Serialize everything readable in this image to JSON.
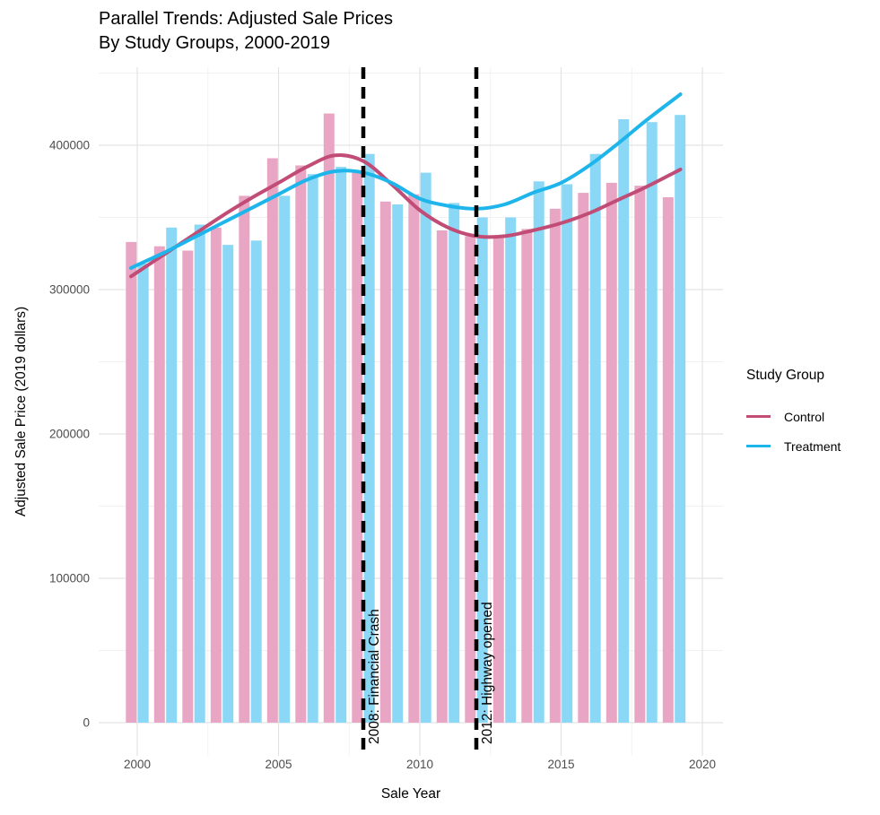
{
  "chart_data": {
    "type": "bar",
    "title_line1": "Parallel Trends: Adjusted Sale Prices",
    "title_line2": "By Study Groups, 2000-2019",
    "xlabel": "Sale Year",
    "ylabel": "Adjusted Sale Price (2019 dollars)",
    "x": [
      2000,
      2001,
      2002,
      2003,
      2004,
      2005,
      2006,
      2007,
      2008,
      2009,
      2010,
      2011,
      2012,
      2013,
      2014,
      2015,
      2016,
      2017,
      2018,
      2019
    ],
    "xticks": [
      2000,
      2005,
      2010,
      2015,
      2020
    ],
    "yticks": [
      0,
      100000,
      200000,
      300000,
      400000
    ],
    "ylim": [
      0,
      450000
    ],
    "grid": true,
    "legend": {
      "title": "Study Group",
      "position": "right",
      "items": [
        {
          "label": "Control",
          "color": "#C14D77"
        },
        {
          "label": "Treatment",
          "color": "#1EB5EB"
        }
      ]
    },
    "series": [
      {
        "name": "Control",
        "glyph": "bar",
        "color": "#E9A6C4",
        "values": [
          333000,
          330000,
          327000,
          343000,
          365000,
          391000,
          386000,
          422000,
          381000,
          361000,
          366000,
          341000,
          337000,
          336000,
          342000,
          356000,
          367000,
          374000,
          372000,
          364000
        ]
      },
      {
        "name": "Treatment",
        "glyph": "bar",
        "color": "#8AD8F5",
        "values": [
          318000,
          343000,
          345000,
          331000,
          334000,
          365000,
          380000,
          385000,
          394000,
          359000,
          381000,
          360000,
          350000,
          350000,
          375000,
          373000,
          394000,
          418000,
          416000,
          421000
        ]
      },
      {
        "name": "Control trend",
        "glyph": "line",
        "color": "#C14D77",
        "values": [
          312000,
          325000,
          338000,
          351000,
          363000,
          374000,
          385000,
          393000,
          389000,
          373000,
          355000,
          343000,
          337000,
          337000,
          341000,
          346000,
          353000,
          362000,
          371000,
          381000
        ]
      },
      {
        "name": "Treatment trend",
        "glyph": "line",
        "color": "#1EB5EB",
        "values": [
          317000,
          326000,
          336000,
          346000,
          356000,
          366000,
          376000,
          382000,
          381000,
          374000,
          363000,
          358000,
          356000,
          359000,
          367000,
          374000,
          386000,
          401000,
          417000,
          432000
        ]
      }
    ],
    "annotations": [
      {
        "x": 2008,
        "label": "2008: Financial Crash"
      },
      {
        "x": 2012,
        "label": "2012: Highway opened"
      }
    ],
    "theme": {
      "grid_major": "#E3E3E3",
      "grid_minor": "#F1F1F1",
      "event_line": "#000000",
      "tick_text": "#4D4D4D",
      "text": "#000000"
    }
  }
}
